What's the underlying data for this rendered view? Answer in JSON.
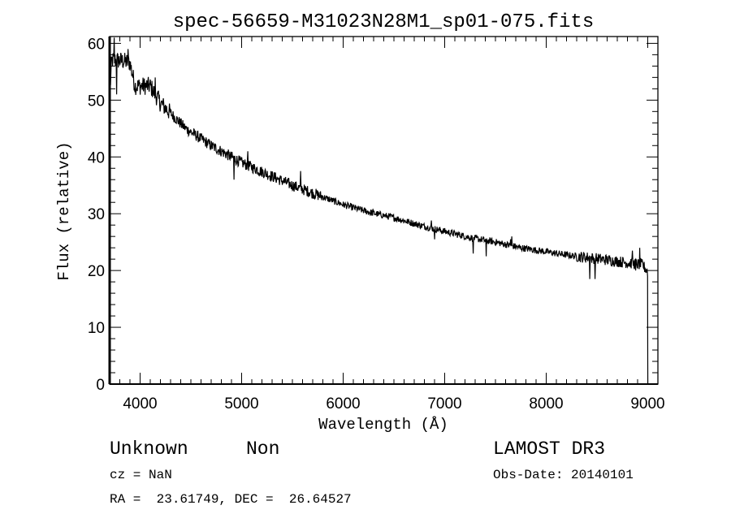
{
  "chart_data": {
    "type": "line",
    "title": "spec-56659-M31023N28M1_sp01-075.fits",
    "xlabel": "Wavelength (Å)",
    "ylabel": "Flux (relative)",
    "xlim": [
      3700,
      9100
    ],
    "ylim": [
      0,
      61.2
    ],
    "xticks": [
      4000,
      5000,
      6000,
      7000,
      8000,
      9000
    ],
    "yticks": [
      0,
      10,
      20,
      30,
      40,
      50,
      60
    ],
    "grid": false,
    "series": [
      {
        "name": "spectrum",
        "continuum": [
          [
            3705,
            52
          ],
          [
            3720,
            57
          ],
          [
            3800,
            57
          ],
          [
            3900,
            56.6
          ],
          [
            3950,
            52.5
          ],
          [
            4050,
            52.5
          ],
          [
            4100,
            52.5
          ],
          [
            4200,
            49.5
          ],
          [
            4450,
            45
          ],
          [
            4700,
            42
          ],
          [
            5000,
            39
          ],
          [
            5250,
            37
          ],
          [
            5500,
            35
          ],
          [
            5750,
            33.3
          ],
          [
            6000,
            31.6
          ],
          [
            6250,
            30.3
          ],
          [
            6500,
            29.3
          ],
          [
            6750,
            28
          ],
          [
            7000,
            26.9
          ],
          [
            7250,
            25.8
          ],
          [
            7500,
            25
          ],
          [
            7750,
            24
          ],
          [
            8000,
            23.3
          ],
          [
            8250,
            22.6
          ],
          [
            8500,
            22.1
          ],
          [
            8750,
            21.5
          ],
          [
            8950,
            21
          ],
          [
            8990,
            20
          ]
        ],
        "features": [
          [
            3745,
            61
          ],
          [
            3770,
            51
          ],
          [
            3880,
            59
          ],
          [
            4150,
            54
          ],
          [
            4925,
            36
          ],
          [
            5580,
            37.5
          ],
          [
            5060,
            41
          ],
          [
            6870,
            28.8
          ],
          [
            6900,
            25.5
          ],
          [
            7280,
            23
          ],
          [
            7650,
            25.5
          ],
          [
            7410,
            22.5
          ],
          [
            7660,
            26
          ],
          [
            8430,
            18.5
          ],
          [
            8480,
            18.5
          ],
          [
            8850,
            23.5
          ],
          [
            8920,
            24
          ],
          [
            8880,
            20
          ],
          [
            9000,
            0
          ]
        ]
      }
    ]
  },
  "footer": {
    "object_class": "Unknown",
    "subclass": "Non",
    "survey": "LAMOST DR3",
    "redshift": "cz = NaN",
    "obs_date": "Obs-Date: 20140101",
    "coords": "RA =  23.61749, DEC =  26.64527"
  }
}
